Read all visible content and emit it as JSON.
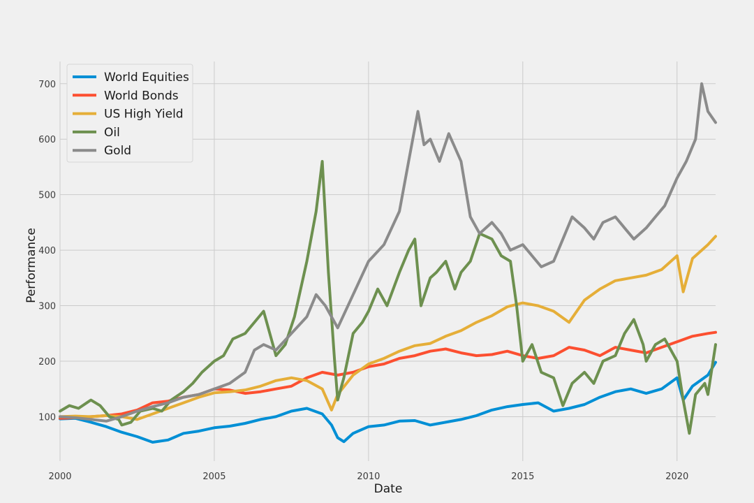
{
  "chart_data": {
    "type": "line",
    "xlabel": "Date",
    "ylabel": "Performance",
    "xlim": [
      2000,
      2021.25
    ],
    "ylim": [
      20,
      740
    ],
    "x_ticks": [
      2000,
      2005,
      2010,
      2015,
      2020
    ],
    "y_ticks": [
      100,
      200,
      300,
      400,
      500,
      600,
      700
    ],
    "grid": true,
    "legend_position": "top-left",
    "series": [
      {
        "name": "World Equities",
        "color": "#008fd5",
        "x": [
          2000,
          2000.5,
          2001,
          2001.5,
          2002,
          2002.5,
          2003,
          2003.5,
          2004,
          2004.5,
          2005,
          2005.5,
          2006,
          2006.5,
          2007,
          2007.5,
          2008,
          2008.5,
          2008.8,
          2009,
          2009.2,
          2009.5,
          2010,
          2010.5,
          2011,
          2011.5,
          2012,
          2012.5,
          2013,
          2013.5,
          2014,
          2014.5,
          2015,
          2015.5,
          2016,
          2016.5,
          2017,
          2017.5,
          2018,
          2018.5,
          2019,
          2019.5,
          2020,
          2020.2,
          2020.5,
          2021,
          2021.25
        ],
        "y": [
          96,
          97,
          90,
          82,
          72,
          64,
          54,
          58,
          70,
          74,
          80,
          83,
          88,
          95,
          100,
          110,
          115,
          105,
          85,
          62,
          55,
          70,
          82,
          85,
          92,
          93,
          85,
          90,
          95,
          102,
          112,
          118,
          122,
          125,
          110,
          115,
          122,
          135,
          145,
          150,
          142,
          150,
          170,
          130,
          155,
          175,
          198
        ]
      },
      {
        "name": "World Bonds",
        "color": "#fc4f30",
        "x": [
          2000,
          2000.5,
          2001,
          2001.5,
          2002,
          2002.5,
          2003,
          2003.5,
          2004,
          2004.5,
          2005,
          2005.5,
          2006,
          2006.5,
          2007,
          2007.5,
          2008,
          2008.5,
          2009,
          2009.5,
          2010,
          2010.5,
          2011,
          2011.5,
          2012,
          2012.5,
          2013,
          2013.5,
          2014,
          2014.5,
          2015,
          2015.5,
          2016,
          2016.5,
          2017,
          2017.5,
          2018,
          2018.5,
          2019,
          2019.5,
          2020,
          2020.5,
          2021,
          2021.25
        ],
        "y": [
          97,
          98,
          100,
          102,
          105,
          112,
          125,
          128,
          135,
          140,
          150,
          148,
          142,
          145,
          150,
          155,
          170,
          180,
          175,
          180,
          190,
          195,
          205,
          210,
          218,
          222,
          215,
          210,
          212,
          218,
          210,
          205,
          210,
          225,
          220,
          210,
          225,
          220,
          215,
          225,
          235,
          245,
          250,
          252
        ]
      },
      {
        "name": "US High Yield",
        "color": "#e5ae38",
        "x": [
          2000,
          2000.5,
          2001,
          2001.5,
          2002,
          2002.5,
          2003,
          2003.5,
          2004,
          2004.5,
          2005,
          2005.5,
          2006,
          2006.5,
          2007,
          2007.5,
          2008,
          2008.5,
          2008.8,
          2009,
          2009.5,
          2010,
          2010.5,
          2011,
          2011.5,
          2012,
          2012.5,
          2013,
          2013.5,
          2014,
          2014.5,
          2015,
          2015.5,
          2016,
          2016.5,
          2017,
          2017.5,
          2018,
          2018.5,
          2019,
          2019.5,
          2020,
          2020.2,
          2020.5,
          2021,
          2021.25
        ],
        "y": [
          100,
          101,
          100,
          102,
          100,
          95,
          105,
          115,
          125,
          135,
          143,
          145,
          148,
          155,
          165,
          170,
          165,
          150,
          112,
          140,
          175,
          195,
          205,
          218,
          228,
          232,
          245,
          255,
          270,
          282,
          298,
          305,
          300,
          290,
          270,
          310,
          330,
          345,
          350,
          355,
          365,
          390,
          325,
          385,
          410,
          425
        ]
      },
      {
        "name": "Oil",
        "color": "#6d904f",
        "x": [
          2000,
          2000.3,
          2000.6,
          2001,
          2001.3,
          2001.6,
          2001.9,
          2002,
          2002.3,
          2002.6,
          2003,
          2003.3,
          2003.6,
          2004,
          2004.3,
          2004.6,
          2005,
          2005.3,
          2005.6,
          2006,
          2006.3,
          2006.6,
          2007,
          2007.3,
          2007.6,
          2008,
          2008.3,
          2008.5,
          2008.7,
          2008.9,
          2009,
          2009.2,
          2009.5,
          2009.8,
          2010,
          2010.3,
          2010.6,
          2011,
          2011.3,
          2011.5,
          2011.7,
          2012,
          2012.2,
          2012.5,
          2012.8,
          2013,
          2013.3,
          2013.6,
          2014,
          2014.3,
          2014.6,
          2014.8,
          2015,
          2015.3,
          2015.6,
          2016,
          2016.3,
          2016.6,
          2017,
          2017.3,
          2017.6,
          2018,
          2018.3,
          2018.6,
          2018.9,
          2019,
          2019.3,
          2019.6,
          2020,
          2020.2,
          2020.4,
          2020.6,
          2020.9,
          2021,
          2021.25
        ],
        "y": [
          110,
          120,
          115,
          130,
          120,
          100,
          95,
          85,
          90,
          110,
          115,
          110,
          130,
          145,
          160,
          180,
          200,
          210,
          240,
          250,
          270,
          290,
          210,
          230,
          280,
          380,
          470,
          560,
          360,
          200,
          130,
          170,
          250,
          270,
          290,
          330,
          300,
          360,
          400,
          420,
          300,
          350,
          360,
          380,
          330,
          360,
          380,
          430,
          420,
          390,
          380,
          300,
          200,
          230,
          180,
          170,
          120,
          160,
          180,
          160,
          200,
          210,
          250,
          275,
          230,
          200,
          230,
          240,
          200,
          130,
          70,
          140,
          160,
          140,
          230
        ]
      },
      {
        "name": "Gold",
        "color": "#8b8b8b",
        "x": [
          2000,
          2000.5,
          2001,
          2001.5,
          2002,
          2002.5,
          2003,
          2003.5,
          2004,
          2004.5,
          2005,
          2005.5,
          2006,
          2006.3,
          2006.6,
          2007,
          2007.5,
          2008,
          2008.3,
          2008.6,
          2008.9,
          2009,
          2009.5,
          2010,
          2010.5,
          2011,
          2011.3,
          2011.6,
          2011.8,
          2012,
          2012.3,
          2012.6,
          2013,
          2013.3,
          2013.6,
          2014,
          2014.3,
          2014.6,
          2015,
          2015.3,
          2015.6,
          2016,
          2016.3,
          2016.6,
          2017,
          2017.3,
          2017.6,
          2018,
          2018.3,
          2018.6,
          2019,
          2019.3,
          2019.6,
          2020,
          2020.3,
          2020.6,
          2020.8,
          2021,
          2021.25
        ],
        "y": [
          100,
          98,
          95,
          92,
          100,
          110,
          118,
          125,
          135,
          140,
          150,
          160,
          180,
          220,
          230,
          220,
          250,
          280,
          320,
          300,
          270,
          260,
          320,
          380,
          410,
          470,
          560,
          650,
          590,
          600,
          560,
          610,
          560,
          460,
          430,
          450,
          430,
          400,
          410,
          390,
          370,
          380,
          420,
          460,
          440,
          420,
          450,
          460,
          440,
          420,
          440,
          460,
          480,
          530,
          560,
          600,
          700,
          650,
          630
        ]
      }
    ]
  }
}
